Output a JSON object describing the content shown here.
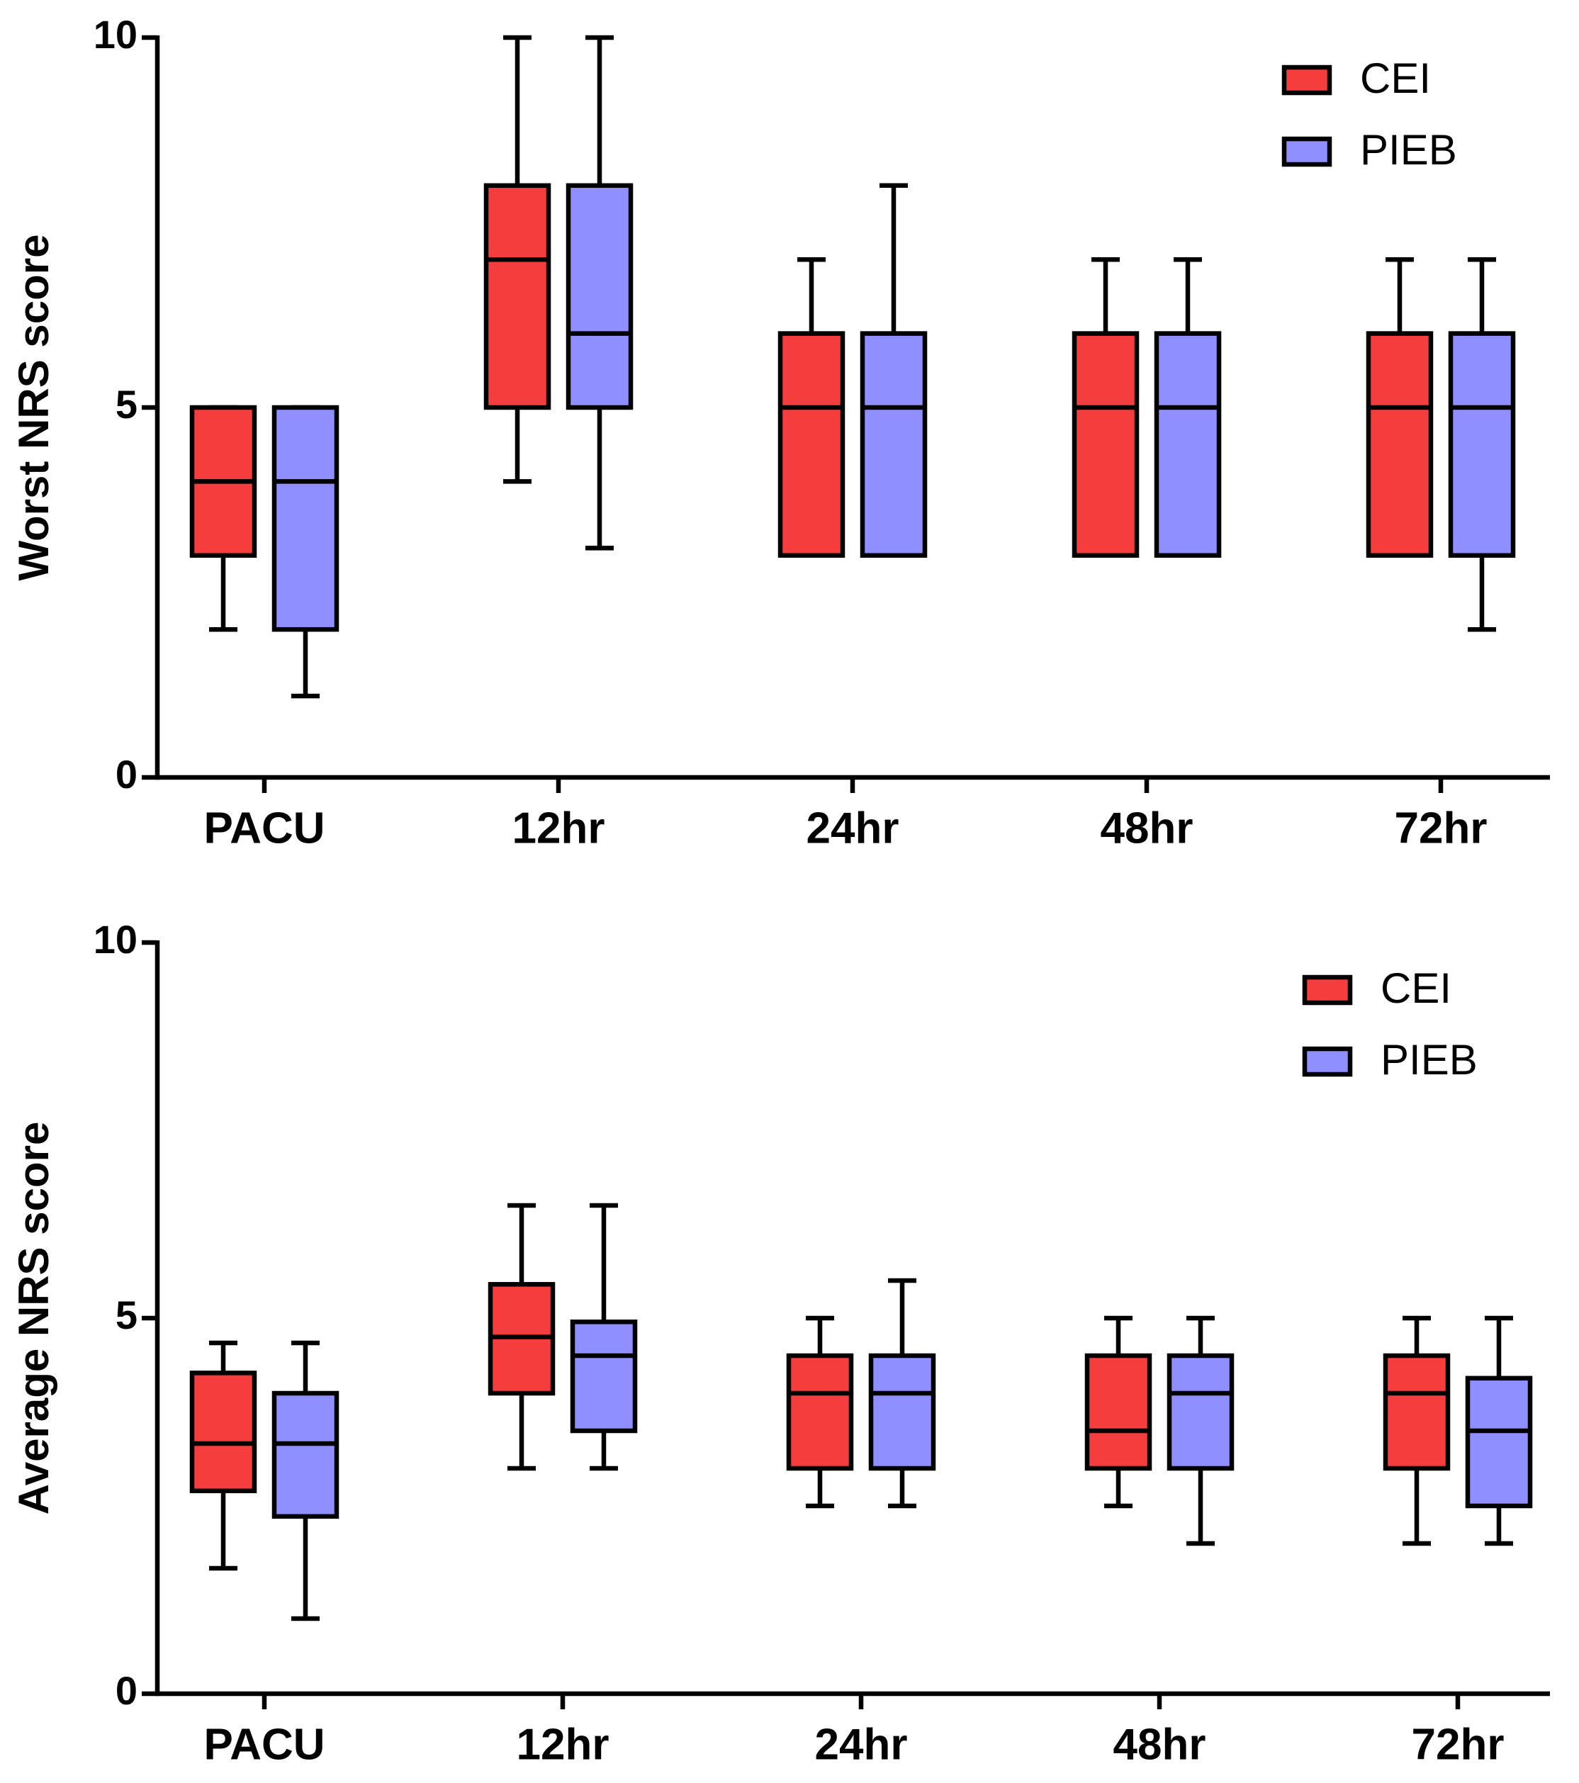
{
  "chart_data": [
    {
      "type": "box",
      "ylabel": "Worst NRS score",
      "categories": [
        "PACU",
        "12hr",
        "24hr",
        "48hr",
        "72hr"
      ],
      "ylim": [
        0,
        10
      ],
      "yticks": [
        0,
        5,
        10
      ],
      "legend": "upper right",
      "series": [
        {
          "name": "CEI",
          "color": "#f53d3d",
          "min": [
            2,
            4,
            3,
            3,
            3
          ],
          "q1": [
            3,
            5,
            3,
            3,
            3
          ],
          "median": [
            4,
            7,
            5,
            5,
            5
          ],
          "q3": [
            5,
            8,
            6,
            6,
            6
          ],
          "max": [
            5,
            10,
            7,
            7,
            7
          ]
        },
        {
          "name": "PIEB",
          "color": "#8f8fff",
          "min": [
            1.1,
            3.1,
            3,
            3,
            2
          ],
          "q1": [
            2,
            5,
            3,
            3,
            3
          ],
          "median": [
            4,
            6,
            5,
            5,
            5
          ],
          "q3": [
            5,
            8,
            6,
            6,
            6
          ],
          "max": [
            5,
            10,
            8,
            7,
            7
          ]
        }
      ]
    },
    {
      "type": "box",
      "ylabel": "Average NRS score",
      "categories": [
        "PACU",
        "12hr",
        "24hr",
        "48hr",
        "72hr"
      ],
      "ylim": [
        0,
        10
      ],
      "yticks": [
        0,
        5,
        10
      ],
      "legend": "upper right",
      "series": [
        {
          "name": "CEI",
          "color": "#f53d3d",
          "min": [
            1.67,
            3,
            2.5,
            2.5,
            2
          ],
          "q1": [
            2.7,
            4,
            3,
            3,
            3
          ],
          "median": [
            3.33,
            4.75,
            4,
            3.5,
            4
          ],
          "q3": [
            4.27,
            5.45,
            4.5,
            4.5,
            4.5
          ],
          "max": [
            4.67,
            6.5,
            5,
            5,
            5
          ]
        },
        {
          "name": "PIEB",
          "color": "#8f8fff",
          "min": [
            1,
            3,
            2.5,
            2,
            2
          ],
          "q1": [
            2.36,
            3.5,
            3,
            3,
            2.5
          ],
          "median": [
            3.33,
            4.5,
            4,
            4,
            3.5
          ],
          "q3": [
            4,
            4.95,
            4.5,
            4.5,
            4.2
          ],
          "max": [
            4.67,
            6.5,
            5.5,
            5,
            5
          ]
        }
      ]
    }
  ]
}
